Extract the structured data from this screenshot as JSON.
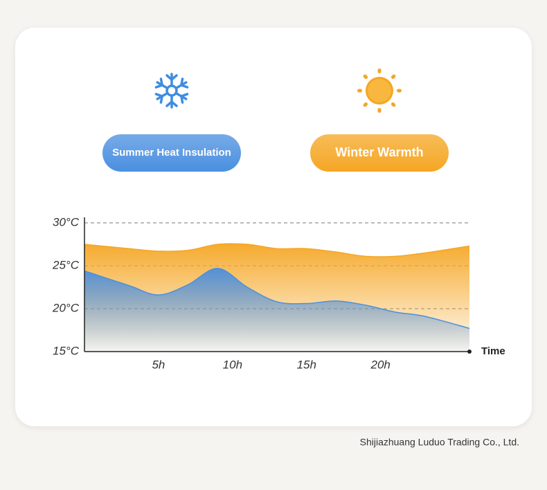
{
  "chart_data": {
    "type": "area",
    "x": [
      0,
      3,
      5,
      7,
      9,
      11,
      13,
      15,
      17,
      19,
      21,
      23,
      26
    ],
    "xlim": [
      0,
      26
    ],
    "xticks": [
      {
        "value": 5,
        "label": "5h"
      },
      {
        "value": 10,
        "label": "10h"
      },
      {
        "value": 15,
        "label": "15h"
      },
      {
        "value": 20,
        "label": "20h"
      }
    ],
    "x_label": "Time",
    "ylim": [
      15,
      30
    ],
    "yticks": [
      {
        "value": 15,
        "label": "15°C"
      },
      {
        "value": 20,
        "label": "20°C"
      },
      {
        "value": 25,
        "label": "25°C"
      },
      {
        "value": 30,
        "label": "30°C"
      }
    ],
    "grid": true,
    "series": [
      {
        "name": "Winter Warmth",
        "color": "#f5a623",
        "values": [
          27.5,
          27.0,
          26.7,
          26.8,
          27.5,
          27.5,
          27.0,
          27.0,
          26.6,
          26.1,
          26.1,
          26.5,
          27.3
        ]
      },
      {
        "name": "Summer Heat Insulation",
        "color": "#4a8fe0",
        "values": [
          24.4,
          22.7,
          21.6,
          22.8,
          24.7,
          22.5,
          20.8,
          20.6,
          20.9,
          20.4,
          19.6,
          19.1,
          17.7
        ]
      }
    ]
  },
  "footer": "Shijiazhuang Luduo Trading Co., Ltd."
}
